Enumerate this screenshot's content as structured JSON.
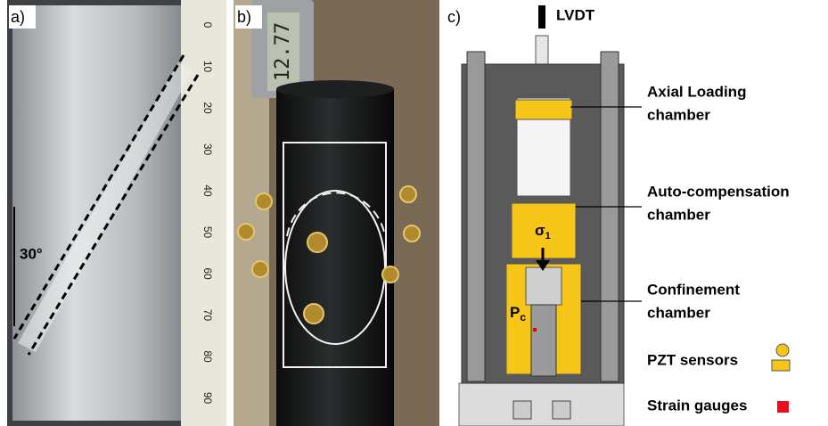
{
  "panels": [
    {
      "label": "a)",
      "angle_label": "30°",
      "ruler_labels": [
        "0",
        "10",
        "20",
        "30",
        "40",
        "50",
        "60",
        "70",
        "80",
        "90"
      ]
    },
    {
      "label": "b)",
      "display": "12.77"
    },
    {
      "label": "c)",
      "lvdt": "LVDT",
      "axial": [
        "Axial Loading",
        "chamber"
      ],
      "auto": [
        "Auto-compensation",
        "chamber"
      ],
      "confinement": [
        "Confinement",
        "chamber"
      ],
      "sigma": "σ",
      "sigma_sub": "1",
      "pc": "P",
      "pc_sub": "c",
      "pzt": "PZT sensors",
      "strain": "Strain gauges"
    }
  ]
}
